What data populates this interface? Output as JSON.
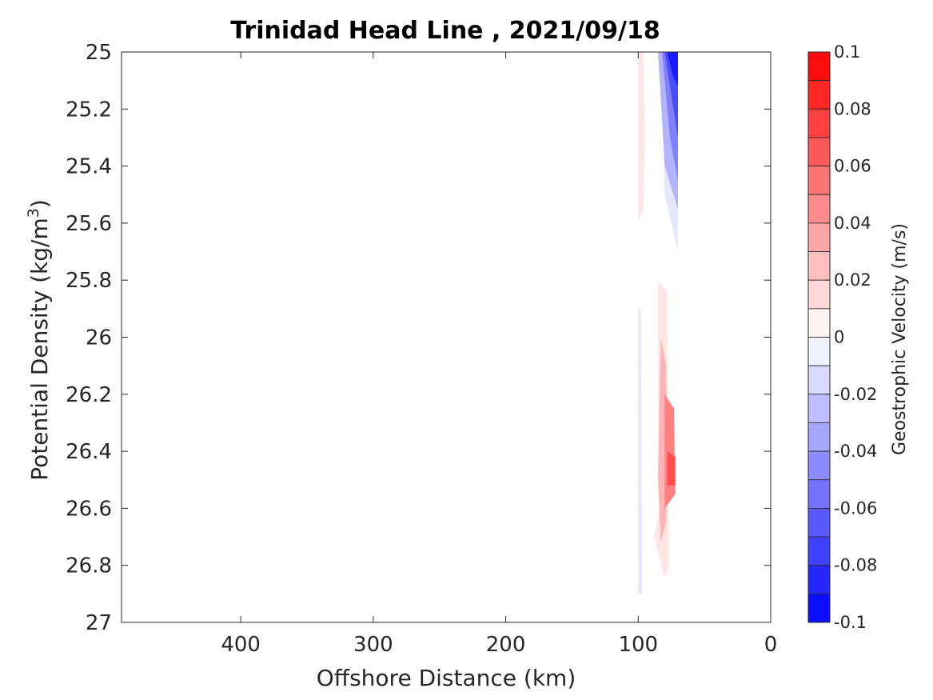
{
  "chart_data": {
    "type": "heatmap",
    "title": "Trinidad Head Line , 2021/09/18",
    "xlabel": "Offshore Distance (km)",
    "ylabel": "Potential Density (kg/m",
    "ylabel_sup": "3",
    "ylabel_end": ")",
    "x_reversed": true,
    "y_reversed": true,
    "xlim": [
      490,
      0
    ],
    "ylim": [
      25,
      27
    ],
    "x_ticks": [
      400,
      300,
      200,
      100,
      0
    ],
    "x_tick_labels": [
      "400",
      "300",
      "200",
      "100",
      "0"
    ],
    "y_ticks": [
      25,
      25.2,
      25.4,
      25.6,
      25.8,
      26,
      26.2,
      26.4,
      26.6,
      26.8,
      27
    ],
    "y_tick_labels": [
      "25",
      "25.2",
      "25.4",
      "25.6",
      "25.8",
      "26",
      "26.2",
      "26.4",
      "26.6",
      "26.8",
      "27"
    ],
    "grid": false,
    "colorbar": {
      "label": "Geostrophic Velocity (m/s)",
      "min": -0.1,
      "max": 0.1,
      "levels": 20,
      "tick_values": [
        0.1,
        0.08,
        0.06,
        0.04,
        0.02,
        0,
        -0.02,
        -0.04,
        -0.06,
        -0.08,
        -0.1
      ],
      "tick_labels": [
        "0.1",
        "0.08",
        "0.06",
        "0.04",
        "0.02",
        "0",
        "-0.02",
        "-0.04",
        "-0.06",
        "-0.08",
        "-0.1"
      ],
      "colormap": "blue-white-red",
      "color_negative_end": "#0000ff",
      "color_zero": "#ffffff",
      "color_positive_end": "#ff0000"
    },
    "filled_regions": [
      {
        "level": 0.01,
        "points": [
          [
            100,
            25
          ],
          [
            96,
            25
          ],
          [
            95,
            25.3
          ],
          [
            96,
            25.55
          ],
          [
            100,
            25.6
          ]
        ]
      },
      {
        "level": 0.01,
        "points": [
          [
            85,
            25.8
          ],
          [
            78,
            25.84
          ],
          [
            77,
            26.55
          ],
          [
            77,
            26.8
          ],
          [
            80,
            26.85
          ],
          [
            88,
            26.7
          ],
          [
            84,
            26.6
          ],
          [
            85,
            26.5
          ]
        ]
      },
      {
        "level": 0.03,
        "points": [
          [
            83,
            26.0
          ],
          [
            79,
            26.1
          ],
          [
            79,
            26.65
          ],
          [
            83,
            26.72
          ],
          [
            85,
            26.5
          ]
        ]
      },
      {
        "level": 0.05,
        "points": [
          [
            80,
            26.2
          ],
          [
            73,
            26.25
          ],
          [
            72,
            26.55
          ],
          [
            80,
            26.6
          ]
        ]
      },
      {
        "level": 0.07,
        "points": [
          [
            78,
            26.4
          ],
          [
            72,
            26.42
          ],
          [
            72,
            26.52
          ],
          [
            78,
            26.52
          ]
        ]
      },
      {
        "level": -0.01,
        "points": [
          [
            100,
            25.9
          ],
          [
            98,
            25.9
          ],
          [
            97,
            26.9
          ],
          [
            100,
            26.9
          ]
        ]
      },
      {
        "level": -0.01,
        "points": [
          [
            90,
            25
          ],
          [
            82,
            25
          ],
          [
            80,
            25.5
          ],
          [
            70,
            25.7
          ],
          [
            70,
            25
          ]
        ]
      },
      {
        "level": -0.03,
        "points": [
          [
            85,
            25
          ],
          [
            80,
            25.4
          ],
          [
            70,
            25.55
          ],
          [
            70,
            25
          ]
        ]
      },
      {
        "level": -0.05,
        "points": [
          [
            82,
            25
          ],
          [
            76,
            25.3
          ],
          [
            70,
            25.45
          ],
          [
            70,
            25
          ]
        ]
      },
      {
        "level": -0.07,
        "points": [
          [
            80,
            25
          ],
          [
            75,
            25.15
          ],
          [
            70,
            25.3
          ],
          [
            70,
            25
          ]
        ]
      },
      {
        "level": -0.09,
        "points": [
          [
            78,
            25
          ],
          [
            74,
            25.08
          ],
          [
            70,
            25.12
          ],
          [
            70,
            25
          ]
        ]
      }
    ]
  }
}
